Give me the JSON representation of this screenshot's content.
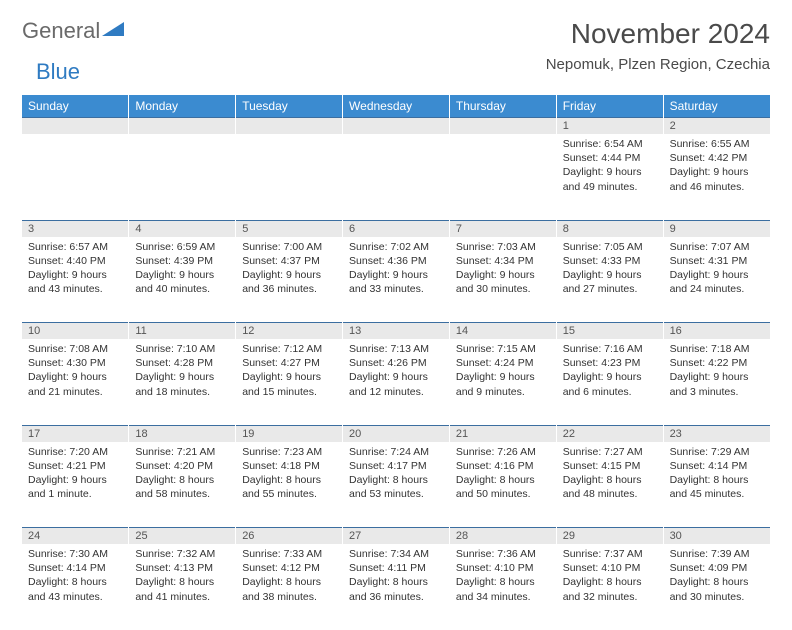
{
  "brand": {
    "part1": "General",
    "part2": "Blue",
    "accent": "#2f7bc2",
    "gray": "#6a6a6a"
  },
  "title": "November 2024",
  "location": "Nepomuk, Plzen Region, Czechia",
  "colors": {
    "header_bg": "#3b8bd0",
    "header_text": "#ffffff",
    "daynum_bg": "#e9e9e9",
    "rule": "#3b6ea0",
    "body_text": "#333333"
  },
  "dayHeaders": [
    "Sunday",
    "Monday",
    "Tuesday",
    "Wednesday",
    "Thursday",
    "Friday",
    "Saturday"
  ],
  "weeks": [
    [
      null,
      null,
      null,
      null,
      null,
      {
        "n": "1",
        "sr": "6:54 AM",
        "ss": "4:44 PM",
        "dl": "9 hours and 49 minutes."
      },
      {
        "n": "2",
        "sr": "6:55 AM",
        "ss": "4:42 PM",
        "dl": "9 hours and 46 minutes."
      }
    ],
    [
      {
        "n": "3",
        "sr": "6:57 AM",
        "ss": "4:40 PM",
        "dl": "9 hours and 43 minutes."
      },
      {
        "n": "4",
        "sr": "6:59 AM",
        "ss": "4:39 PM",
        "dl": "9 hours and 40 minutes."
      },
      {
        "n": "5",
        "sr": "7:00 AM",
        "ss": "4:37 PM",
        "dl": "9 hours and 36 minutes."
      },
      {
        "n": "6",
        "sr": "7:02 AM",
        "ss": "4:36 PM",
        "dl": "9 hours and 33 minutes."
      },
      {
        "n": "7",
        "sr": "7:03 AM",
        "ss": "4:34 PM",
        "dl": "9 hours and 30 minutes."
      },
      {
        "n": "8",
        "sr": "7:05 AM",
        "ss": "4:33 PM",
        "dl": "9 hours and 27 minutes."
      },
      {
        "n": "9",
        "sr": "7:07 AM",
        "ss": "4:31 PM",
        "dl": "9 hours and 24 minutes."
      }
    ],
    [
      {
        "n": "10",
        "sr": "7:08 AM",
        "ss": "4:30 PM",
        "dl": "9 hours and 21 minutes."
      },
      {
        "n": "11",
        "sr": "7:10 AM",
        "ss": "4:28 PM",
        "dl": "9 hours and 18 minutes."
      },
      {
        "n": "12",
        "sr": "7:12 AM",
        "ss": "4:27 PM",
        "dl": "9 hours and 15 minutes."
      },
      {
        "n": "13",
        "sr": "7:13 AM",
        "ss": "4:26 PM",
        "dl": "9 hours and 12 minutes."
      },
      {
        "n": "14",
        "sr": "7:15 AM",
        "ss": "4:24 PM",
        "dl": "9 hours and 9 minutes."
      },
      {
        "n": "15",
        "sr": "7:16 AM",
        "ss": "4:23 PM",
        "dl": "9 hours and 6 minutes."
      },
      {
        "n": "16",
        "sr": "7:18 AM",
        "ss": "4:22 PM",
        "dl": "9 hours and 3 minutes."
      }
    ],
    [
      {
        "n": "17",
        "sr": "7:20 AM",
        "ss": "4:21 PM",
        "dl": "9 hours and 1 minute."
      },
      {
        "n": "18",
        "sr": "7:21 AM",
        "ss": "4:20 PM",
        "dl": "8 hours and 58 minutes."
      },
      {
        "n": "19",
        "sr": "7:23 AM",
        "ss": "4:18 PM",
        "dl": "8 hours and 55 minutes."
      },
      {
        "n": "20",
        "sr": "7:24 AM",
        "ss": "4:17 PM",
        "dl": "8 hours and 53 minutes."
      },
      {
        "n": "21",
        "sr": "7:26 AM",
        "ss": "4:16 PM",
        "dl": "8 hours and 50 minutes."
      },
      {
        "n": "22",
        "sr": "7:27 AM",
        "ss": "4:15 PM",
        "dl": "8 hours and 48 minutes."
      },
      {
        "n": "23",
        "sr": "7:29 AM",
        "ss": "4:14 PM",
        "dl": "8 hours and 45 minutes."
      }
    ],
    [
      {
        "n": "24",
        "sr": "7:30 AM",
        "ss": "4:14 PM",
        "dl": "8 hours and 43 minutes."
      },
      {
        "n": "25",
        "sr": "7:32 AM",
        "ss": "4:13 PM",
        "dl": "8 hours and 41 minutes."
      },
      {
        "n": "26",
        "sr": "7:33 AM",
        "ss": "4:12 PM",
        "dl": "8 hours and 38 minutes."
      },
      {
        "n": "27",
        "sr": "7:34 AM",
        "ss": "4:11 PM",
        "dl": "8 hours and 36 minutes."
      },
      {
        "n": "28",
        "sr": "7:36 AM",
        "ss": "4:10 PM",
        "dl": "8 hours and 34 minutes."
      },
      {
        "n": "29",
        "sr": "7:37 AM",
        "ss": "4:10 PM",
        "dl": "8 hours and 32 minutes."
      },
      {
        "n": "30",
        "sr": "7:39 AM",
        "ss": "4:09 PM",
        "dl": "8 hours and 30 minutes."
      }
    ]
  ],
  "labels": {
    "sunrise": "Sunrise:",
    "sunset": "Sunset:",
    "daylight": "Daylight:"
  }
}
